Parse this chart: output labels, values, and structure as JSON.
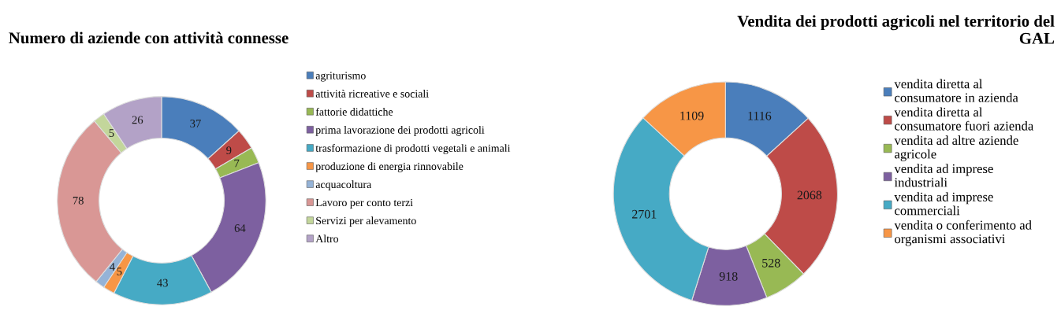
{
  "chart_data": [
    {
      "type": "donut",
      "title": "Numero di aziende con attività connesse",
      "legend": "right",
      "data_labels": true,
      "categories": [
        "agriturismo",
        "attività ricreative e sociali",
        "fattorie didattiche",
        "prima lavorazione dei prodotti agricoli",
        "trasformazione di prodotti vegetali e animali",
        "produzione di energia rinnovabile",
        "acquacoltura",
        "Lavoro per conto terzi",
        "Servizi per alevamento",
        "Altro"
      ],
      "values": [
        37,
        9,
        7,
        64,
        43,
        5,
        4,
        78,
        5,
        26
      ],
      "colors": [
        "#4a7ebb",
        "#be4b48",
        "#98b954",
        "#7d60a0",
        "#46aac5",
        "#f79646",
        "#95b3d7",
        "#d99795",
        "#c3d69b",
        "#b3a2c7"
      ]
    },
    {
      "type": "donut",
      "title": "Vendita dei prodotti agricoli nel territorio del\nGAL",
      "legend": "right",
      "data_labels": true,
      "categories": [
        "vendita diretta al\nconsumatore in azienda",
        "vendita diretta al\nconsumatore fuori azienda",
        "vendita ad altre aziende\nagricole",
        "vendita ad imprese\nindustriali",
        "vendita ad imprese\ncommerciali",
        "vendita o conferimento ad\norganismi associativi"
      ],
      "values": [
        1116,
        2068,
        528,
        918,
        2701,
        1109
      ],
      "colors": [
        "#4a7ebb",
        "#be4b48",
        "#98b954",
        "#7d60a0",
        "#46aac5",
        "#f79646"
      ]
    }
  ]
}
